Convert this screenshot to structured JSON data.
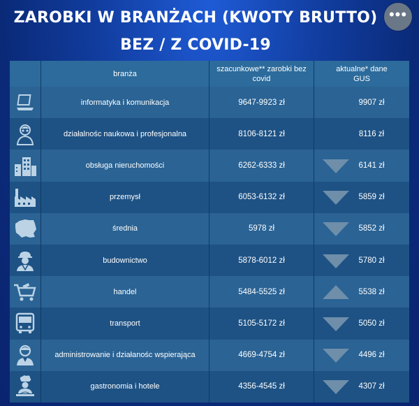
{
  "title_line1": "ZAROBKI W BRANŻACH (KWOTY BRUTTO)",
  "title_line2": "BEZ / Z COVID-19",
  "more_button": "•••",
  "header": {
    "branch": "branża",
    "estimated": "szacunkowe** zarobki bez covid",
    "actual": "aktualne* dane GUS"
  },
  "rows": [
    {
      "icon": "laptop-icon",
      "branch": "informatyka i komunikacja",
      "estimated": "9647-9923 zł",
      "actual": "9907 zł",
      "trend": "none"
    },
    {
      "icon": "scientist-icon",
      "branch": "działalnośc naukowa i profesjonalna",
      "estimated": "8106-8121 zł",
      "actual": "8116 zł",
      "trend": "none"
    },
    {
      "icon": "buildings-icon",
      "branch": "obsługa nieruchomości",
      "estimated": "6262-6333 zł",
      "actual": "6141 zł",
      "trend": "down"
    },
    {
      "icon": "factory-icon",
      "branch": "przemysł",
      "estimated": "6053-6132 zł",
      "actual": "5859 zł",
      "trend": "down"
    },
    {
      "icon": "poland-map-icon",
      "branch": "średnia",
      "estimated": "5978 zł",
      "actual": "5852 zł",
      "trend": "down"
    },
    {
      "icon": "construction-worker-icon",
      "branch": "budownictwo",
      "estimated": "5878-6012 zł",
      "actual": "5780 zł",
      "trend": "down"
    },
    {
      "icon": "shopping-cart-icon",
      "branch": "handel",
      "estimated": "5484-5525 zł",
      "actual": "5538 zł",
      "trend": "up"
    },
    {
      "icon": "bus-icon",
      "branch": "transport",
      "estimated": "5105-5172 zł",
      "actual": "5050 zł",
      "trend": "down"
    },
    {
      "icon": "office-worker-icon",
      "branch": "administrowanie i działanośc wspierająca",
      "estimated": "4669-4754 zł",
      "actual": "4496 zł",
      "trend": "down"
    },
    {
      "icon": "chef-icon",
      "branch": "gastronomia i hotele",
      "estimated": "4356-4545 zł",
      "actual": "4307 zł",
      "trend": "down"
    }
  ],
  "colors": {
    "background": "#123fa3",
    "header_row": "#2c6b9c",
    "row_light": "#2a6394",
    "row_dark": "#1e5284",
    "arrow": "#6e8eaa",
    "icon": "#bcd3e6"
  }
}
